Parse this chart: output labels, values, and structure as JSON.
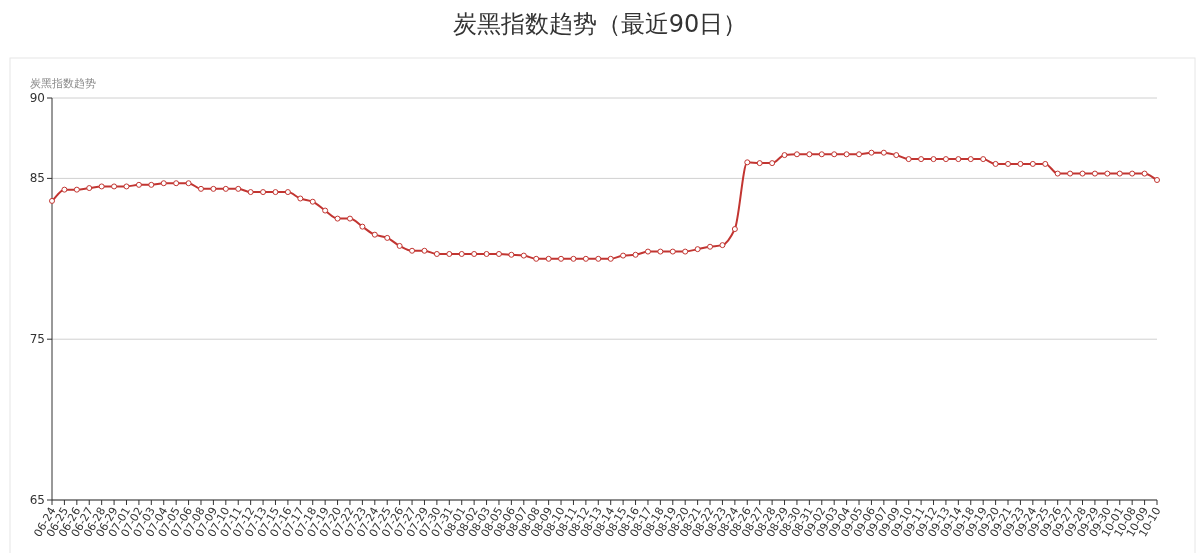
{
  "chart_data": {
    "type": "line",
    "title": "炭黑指数趋势（最近90日）",
    "ylabel": "炭黑指数趋势",
    "categories": [
      "06-24",
      "06-25",
      "06-26",
      "06-27",
      "06-28",
      "06-29",
      "07-01",
      "07-02",
      "07-03",
      "07-04",
      "07-05",
      "07-06",
      "07-08",
      "07-09",
      "07-10",
      "07-11",
      "07-12",
      "07-13",
      "07-15",
      "07-16",
      "07-17",
      "07-18",
      "07-19",
      "07-20",
      "07-22",
      "07-23",
      "07-24",
      "07-25",
      "07-26",
      "07-27",
      "07-29",
      "07-30",
      "07-31",
      "08-01",
      "08-02",
      "08-03",
      "08-05",
      "08-06",
      "08-07",
      "08-08",
      "08-09",
      "08-10",
      "08-11",
      "08-12",
      "08-13",
      "08-14",
      "08-15",
      "08-16",
      "08-17",
      "08-18",
      "08-19",
      "08-20",
      "08-21",
      "08-22",
      "08-23",
      "08-24",
      "08-26",
      "08-27",
      "08-28",
      "08-29",
      "08-30",
      "08-31",
      "09-02",
      "09-03",
      "09-04",
      "09-05",
      "09-06",
      "09-07",
      "09-09",
      "09-10",
      "09-11",
      "09-12",
      "09-13",
      "09-14",
      "09-18",
      "09-19",
      "09-20",
      "09-21",
      "09-23",
      "09-24",
      "09-25",
      "09-26",
      "09-27",
      "09-28",
      "09-29",
      "09-30",
      "10-01",
      "10-08",
      "10-09",
      "10-10"
    ],
    "series": [
      {
        "color": "#c23531",
        "values": [
          83.6,
          84.3,
          84.3,
          84.4,
          84.5,
          84.5,
          84.5,
          84.6,
          84.6,
          84.7,
          84.7,
          84.7,
          84.35,
          84.35,
          84.35,
          84.35,
          84.15,
          84.15,
          84.15,
          84.15,
          83.75,
          83.55,
          83.0,
          82.5,
          82.5,
          82.0,
          81.5,
          81.3,
          80.8,
          80.5,
          80.5,
          80.3,
          80.3,
          80.3,
          80.3,
          80.3,
          80.3,
          80.25,
          80.2,
          80.0,
          80.0,
          80.0,
          80.0,
          80.0,
          80.0,
          80.0,
          80.2,
          80.25,
          80.45,
          80.45,
          80.45,
          80.45,
          80.6,
          80.75,
          80.85,
          81.85,
          86.0,
          85.95,
          85.95,
          86.45,
          86.5,
          86.5,
          86.5,
          86.5,
          86.5,
          86.5,
          86.6,
          86.6,
          86.45,
          86.2,
          86.2,
          86.2,
          86.2,
          86.2,
          86.2,
          86.2,
          85.9,
          85.9,
          85.9,
          85.9,
          85.9,
          85.3,
          85.3,
          85.3,
          85.3,
          85.3,
          85.3,
          85.3,
          85.3,
          84.9
        ]
      }
    ],
    "ylim": [
      65,
      90
    ],
    "yticks": [
      65,
      75,
      85,
      90
    ],
    "grid": "y",
    "marker": "circle",
    "line_style": "solid"
  }
}
